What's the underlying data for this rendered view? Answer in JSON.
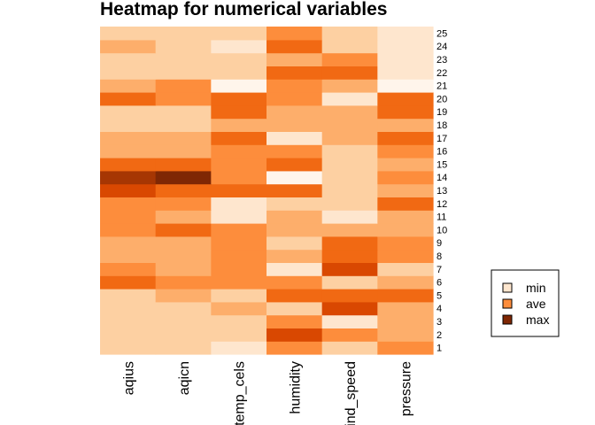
{
  "chart_data": {
    "type": "heatmap",
    "title": "Heatmap for numerical variables",
    "columns": [
      "aqius",
      "aqicn",
      "temp_cels",
      "humidity",
      "wind_speed",
      "pressure"
    ],
    "rows": [
      "1",
      "2",
      "3",
      "4",
      "5",
      "6",
      "7",
      "8",
      "9",
      "10",
      "11",
      "12",
      "13",
      "14",
      "15",
      "16",
      "17",
      "18",
      "19",
      "20",
      "21",
      "22",
      "23",
      "24",
      "25"
    ],
    "scale": [
      "#fff5eb",
      "#fee6ce",
      "#fdd0a2",
      "#fdae6b",
      "#fd8d3c",
      "#f16913",
      "#d94801",
      "#a63603",
      "#7f2704"
    ],
    "values": [
      [
        2,
        2,
        1,
        4,
        2,
        4
      ],
      [
        2,
        2,
        2,
        6,
        4,
        3
      ],
      [
        2,
        2,
        2,
        4,
        1,
        3
      ],
      [
        2,
        2,
        3,
        2,
        6,
        3
      ],
      [
        2,
        3,
        2,
        5,
        5,
        5
      ],
      [
        5,
        4,
        4,
        4,
        2,
        3
      ],
      [
        4,
        3,
        4,
        1,
        6,
        2
      ],
      [
        3,
        3,
        4,
        3,
        5,
        4
      ],
      [
        3,
        3,
        4,
        2,
        5,
        4
      ],
      [
        4,
        5,
        4,
        3,
        3,
        3
      ],
      [
        4,
        3,
        1,
        3,
        1,
        3
      ],
      [
        4,
        4,
        1,
        2,
        2,
        5
      ],
      [
        6,
        5,
        5,
        5,
        2,
        3
      ],
      [
        7,
        8,
        4,
        0,
        2,
        4
      ],
      [
        5,
        5,
        4,
        5,
        2,
        3
      ],
      [
        3,
        3,
        4,
        4,
        2,
        4
      ],
      [
        3,
        3,
        5,
        1,
        3,
        5
      ],
      [
        2,
        2,
        3,
        3,
        3,
        3
      ],
      [
        2,
        2,
        5,
        3,
        3,
        5
      ],
      [
        5,
        4,
        5,
        4,
        1,
        5
      ],
      [
        3,
        4,
        0,
        4,
        3,
        0
      ],
      [
        2,
        2,
        2,
        5,
        5,
        1
      ],
      [
        2,
        2,
        2,
        3,
        4,
        1
      ],
      [
        3,
        2,
        1,
        5,
        2,
        1
      ],
      [
        2,
        2,
        2,
        4,
        2,
        1
      ]
    ],
    "legend": {
      "position": "right",
      "entries": [
        {
          "label": "min",
          "color": "#fee6ce"
        },
        {
          "label": "ave",
          "color": "#fd8d3c"
        },
        {
          "label": "max",
          "color": "#7f2704"
        }
      ]
    }
  }
}
